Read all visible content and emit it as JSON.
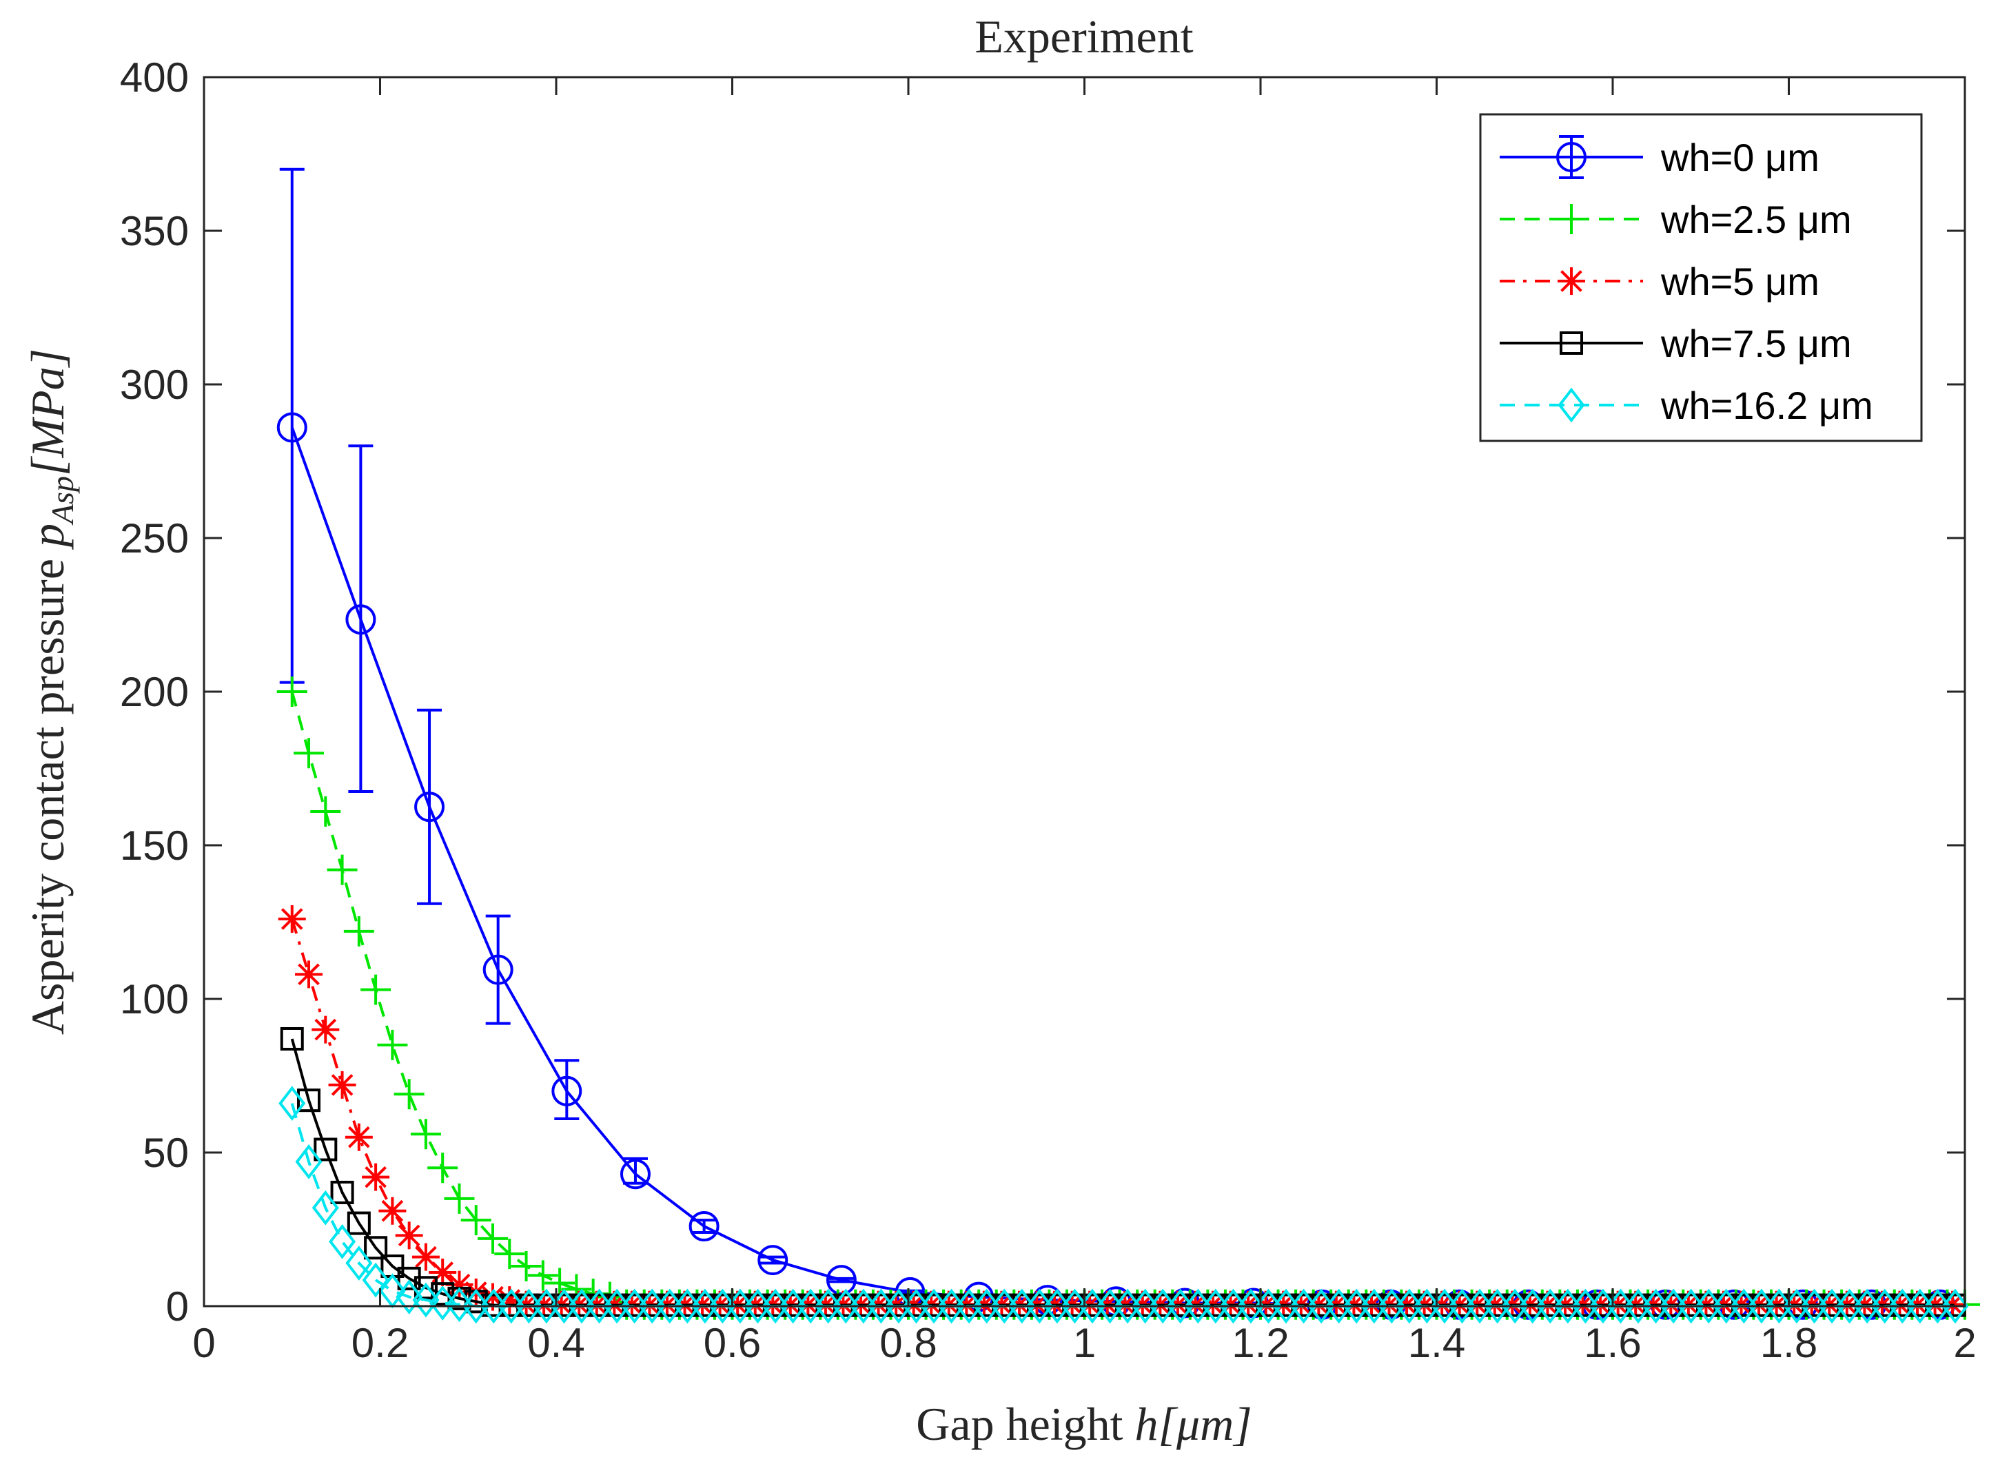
{
  "chart_data": {
    "type": "line",
    "title": "Experiment",
    "xlabel": {
      "prefix": "Gap height ",
      "math": "h[μm]"
    },
    "ylabel": {
      "prefix": "Asperity contact pressure ",
      "math": "p",
      "subscript": "Asp",
      "suffix": "[MPa]"
    },
    "xlim": [
      0,
      2
    ],
    "ylim": [
      0,
      400
    ],
    "xticks": [
      0,
      0.2,
      0.4,
      0.6,
      0.8,
      1,
      1.2,
      1.4,
      1.6,
      1.8,
      2
    ],
    "xtick_labels": [
      "0",
      "0.2",
      "0.4",
      "0.6",
      "0.8",
      "1",
      "1.2",
      "1.4",
      "1.6",
      "1.8",
      "2"
    ],
    "yticks": [
      0,
      50,
      100,
      150,
      200,
      250,
      300,
      350,
      400
    ],
    "ytick_labels": [
      "0",
      "50",
      "100",
      "150",
      "200",
      "250",
      "300",
      "350",
      "400"
    ],
    "grid": false,
    "legend_position": "top-right",
    "series": [
      {
        "name": "wh=0 μm",
        "color": "#0000ff",
        "marker": "circle",
        "line": "solid",
        "x": [
          0.1,
          0.178,
          0.256,
          0.334,
          0.412,
          0.49,
          0.568,
          0.646,
          0.724,
          0.802,
          0.88,
          0.958,
          1.036,
          1.114,
          1.192,
          1.27,
          1.348,
          1.426,
          1.504,
          1.582,
          1.66,
          1.738,
          1.816,
          1.894,
          1.972
        ],
        "y": [
          286,
          223.5,
          162.5,
          109.5,
          70,
          43,
          26,
          15,
          8.5,
          4.5,
          3,
          2,
          1.5,
          1,
          1,
          0.5,
          0.5,
          0.5,
          0.5,
          0.5,
          0.5,
          0.5,
          0.5,
          0.5,
          0.5
        ],
        "err_low": [
          203,
          167.5,
          131,
          92,
          61,
          40,
          24,
          14,
          8,
          4,
          3,
          2,
          1.5,
          1,
          1,
          0.5,
          0.5,
          0.5,
          0.5,
          0.5,
          0.5,
          0.5,
          0.5,
          0.5,
          0.5
        ],
        "err_high": [
          370,
          280,
          194,
          127,
          80,
          48,
          28,
          16,
          9,
          5,
          3,
          2,
          1.5,
          1,
          1,
          0.5,
          0.5,
          0.5,
          0.5,
          0.5,
          0.5,
          0.5,
          0.5,
          0.5,
          0.5
        ]
      },
      {
        "name": "wh=2.5 μm",
        "color": "#00e600",
        "marker": "plus",
        "line": "dashed",
        "x": [
          0.1,
          0.119,
          0.138,
          0.157,
          0.176,
          0.195,
          0.214,
          0.233,
          0.252,
          0.271,
          0.29,
          0.309,
          0.328,
          0.347,
          0.366,
          0.385,
          0.404,
          0.423,
          0.442,
          0.461
        ],
        "y": [
          200,
          180,
          161,
          142,
          122,
          103,
          85,
          69,
          56,
          45,
          35,
          28,
          22,
          17,
          13,
          10,
          7.5,
          5.5,
          4,
          3
        ],
        "x_tail_start": 0.48,
        "x_tail_step": 0.02,
        "y_tail": 0.5
      },
      {
        "name": "wh=5 μm",
        "color": "#ff0000",
        "marker": "asterisk",
        "line": "dashdot",
        "x": [
          0.1,
          0.119,
          0.138,
          0.157,
          0.176,
          0.195,
          0.214,
          0.233,
          0.252,
          0.271,
          0.29,
          0.309,
          0.328,
          0.347
        ],
        "y": [
          126,
          108,
          90,
          72,
          55,
          42,
          31,
          23,
          16,
          11,
          7,
          4.5,
          3,
          2
        ],
        "x_tail_start": 0.366,
        "x_tail_step": 0.02,
        "y_tail": 0.5
      },
      {
        "name": "wh=7.5 μm",
        "color": "#000000",
        "marker": "square",
        "line": "solid",
        "x": [
          0.1,
          0.119,
          0.138,
          0.157,
          0.176,
          0.195,
          0.214,
          0.233,
          0.252,
          0.271,
          0.29,
          0.309
        ],
        "y": [
          87,
          67,
          51,
          37,
          27,
          19,
          13,
          9,
          6,
          4,
          2.5,
          1.5
        ],
        "x_tail_start": 0.328,
        "x_tail_step": 0.02,
        "y_tail": 0.3
      },
      {
        "name": "wh=16.2 μm",
        "color": "#00e5ee",
        "marker": "diamond",
        "line": "dashed",
        "x": [
          0.1,
          0.119,
          0.138,
          0.157,
          0.176,
          0.195,
          0.214,
          0.233,
          0.252,
          0.271,
          0.29
        ],
        "y": [
          66,
          47,
          32,
          21,
          14,
          8.5,
          5,
          3,
          2,
          1,
          0.5
        ],
        "x_tail_start": 0.309,
        "x_tail_step": 0.02,
        "y_tail": 0
      }
    ]
  }
}
